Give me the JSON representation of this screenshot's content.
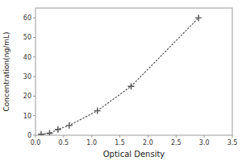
{
  "chart_data": {
    "type": "line",
    "xlabel": "Optical Density",
    "ylabel": "Concentration(ng/mL)",
    "x": [
      0.1,
      0.25,
      0.4,
      0.6,
      1.1,
      1.7,
      2.9
    ],
    "values": [
      0.5,
      1.0,
      3.0,
      5.0,
      12.5,
      25.0,
      60.0
    ],
    "xlim": [
      0,
      3.5
    ],
    "ylim": [
      0,
      65
    ],
    "xticks": [
      {
        "value": 0,
        "label": "0.0"
      },
      0.5,
      {
        "value": 1.0,
        "label": "1.0"
      },
      1.5,
      {
        "value": 2.0,
        "label": "2.0"
      },
      2.5,
      {
        "value": 3.0,
        "label": "3.0"
      },
      3.5
    ],
    "yticks": [
      0,
      10,
      20,
      30,
      40,
      50,
      60
    ],
    "color": "#555555",
    "marker": "plus",
    "line_style": "dotted",
    "grid": false
  }
}
